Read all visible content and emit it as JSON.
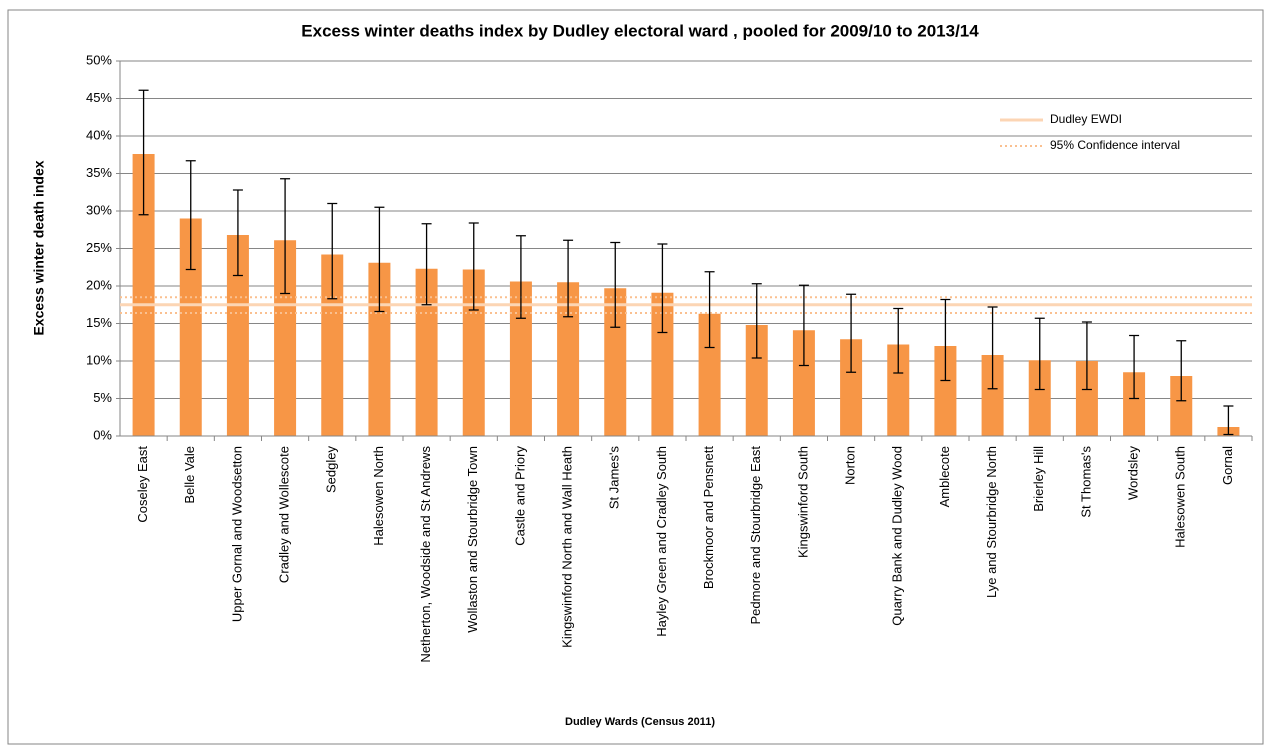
{
  "chart_data": {
    "type": "bar",
    "title": "Excess winter deaths index by Dudley electoral ward , pooled for 2009/10 to 2013/14",
    "x_label": "Dudley Wards (Census 2011)",
    "y_label": "Excess winter death index",
    "categories": [
      "Coseley East",
      "Belle Vale",
      "Upper Gornal and Woodsetton",
      "Cradley and Wollescote",
      "Sedgley",
      "Halesowen North",
      "Netherton, Woodside and St Andrews",
      "Wollaston and Stourbridge Town",
      "Castle and Priory",
      "Kingswinford North and Wall Heath",
      "St James's",
      "Hayley Green and Cradley South",
      "Brockmoor and Pensnett",
      "Pedmore and Stourbridge East",
      "Kingswinford South",
      "Norton",
      "Quarry Bank and Dudley Wood",
      "Amblecote",
      "Lye and Stourbridge North",
      "Brierley Hill",
      "St Thomas's",
      "Wordsley",
      "Halesowen South",
      "Gornal"
    ],
    "values": [
      37.6,
      29.0,
      26.8,
      26.1,
      24.2,
      23.1,
      22.3,
      22.2,
      20.6,
      20.5,
      19.7,
      19.1,
      16.3,
      14.8,
      14.1,
      12.9,
      12.2,
      12.0,
      10.8,
      10.1,
      10.0,
      8.5,
      8.0,
      1.2
    ],
    "lower": [
      29.5,
      22.2,
      21.4,
      19.0,
      18.3,
      16.6,
      17.5,
      16.8,
      15.7,
      15.9,
      14.5,
      13.8,
      11.8,
      10.4,
      9.4,
      8.5,
      8.4,
      7.4,
      6.3,
      6.2,
      6.2,
      5.0,
      4.7,
      0.2
    ],
    "upper": [
      46.1,
      36.7,
      32.8,
      34.3,
      31.0,
      30.5,
      28.3,
      28.4,
      26.7,
      26.1,
      25.8,
      25.6,
      21.9,
      20.3,
      20.1,
      18.9,
      17.0,
      18.2,
      17.2,
      15.7,
      15.2,
      13.4,
      12.7,
      4.0
    ],
    "color": "#f79646",
    "reference_lines": [
      {
        "name": "Dudley EWDI",
        "values": [
          17.5
        ],
        "color": "#fcd5b4",
        "style": "solid"
      },
      {
        "name": "95% Confidence interval",
        "values": [
          16.4,
          18.5
        ],
        "color": "#fac090",
        "style": "dotted"
      }
    ],
    "ylim": [
      0,
      50
    ],
    "yticks": [
      {
        "value": 0,
        "label": "0%"
      },
      {
        "value": 5,
        "label": "5%"
      },
      {
        "value": 10,
        "label": "10%"
      },
      {
        "value": 15,
        "label": "15%"
      },
      {
        "value": 20,
        "label": "20%"
      },
      {
        "value": 25,
        "label": "25%"
      },
      {
        "value": 30,
        "label": "30%"
      },
      {
        "value": 35,
        "label": "35%"
      },
      {
        "value": 40,
        "label": "40%"
      },
      {
        "value": 45,
        "label": "45%"
      },
      {
        "value": 50,
        "label": "50%"
      }
    ],
    "grid": true
  }
}
